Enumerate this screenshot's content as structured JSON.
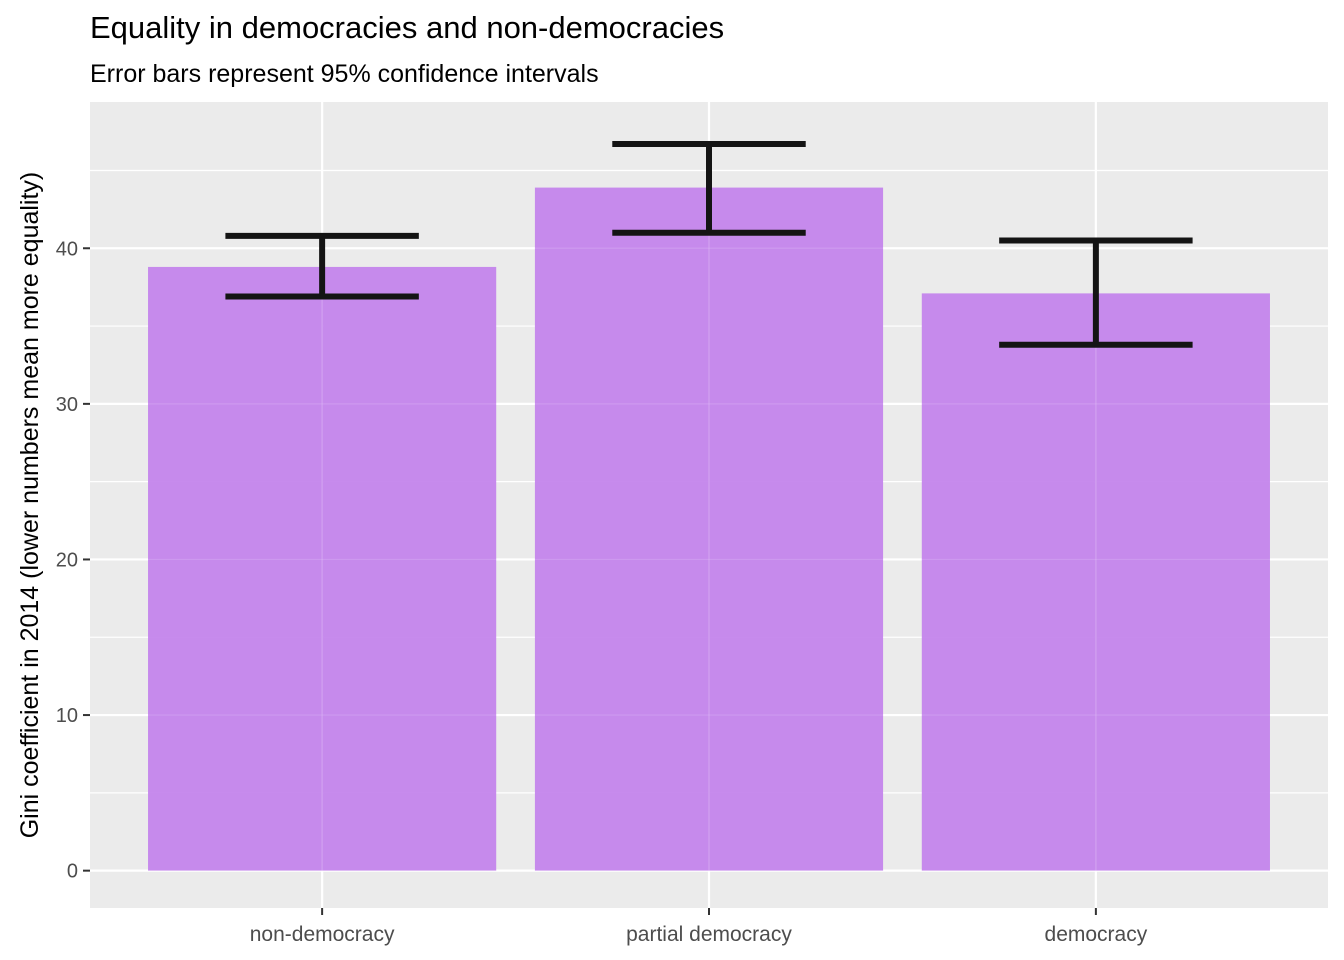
{
  "chart_data": {
    "type": "bar",
    "title": "Equality in democracies and non-democracies",
    "subtitle": "Error bars represent 95% confidence intervals",
    "xlabel": "",
    "ylabel": "Gini coefficient in 2014 (lower numbers mean more equality)",
    "categories": [
      "non-democracy",
      "partial democracy",
      "democracy"
    ],
    "values": [
      38.8,
      43.9,
      37.1
    ],
    "ci_low": [
      36.9,
      41.0,
      33.8
    ],
    "ci_high": [
      40.8,
      46.7,
      40.5
    ],
    "ylim": [
      -2.4,
      49.4
    ],
    "yticks": [
      0,
      10,
      20,
      30,
      40
    ],
    "grid": true,
    "colors": {
      "bar": "#c281ec",
      "errorbar": "#141414",
      "panel": "#ebebeb",
      "gridline": "#ffffff"
    }
  }
}
